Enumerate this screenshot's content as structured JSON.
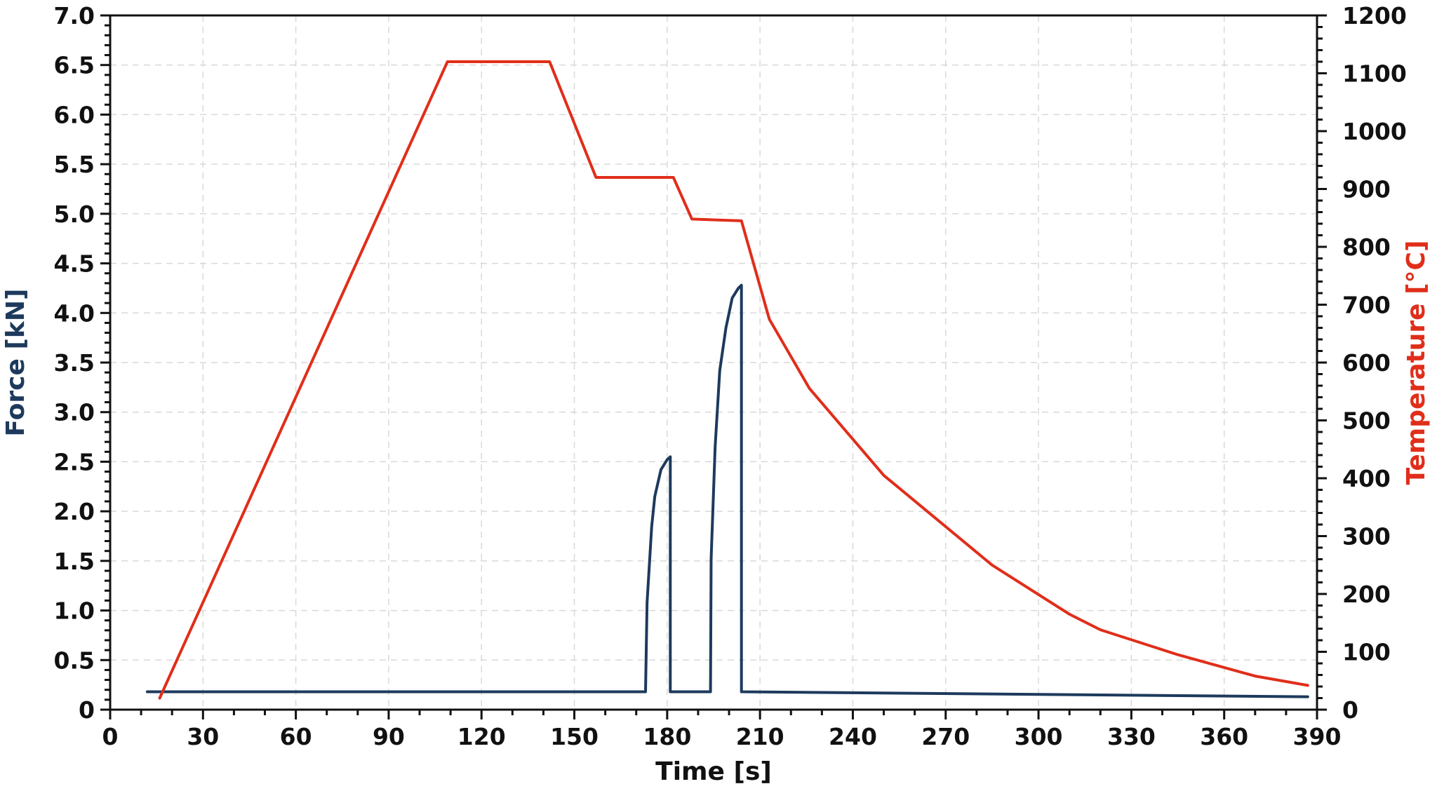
{
  "chart_data": {
    "type": "line",
    "xlabel": "Time [s]",
    "ylabel_left": "Force [kN]",
    "ylabel_right": "Temperature [°C]",
    "xlim": [
      0,
      390
    ],
    "ylim_left": [
      0,
      7.0
    ],
    "ylim_right": [
      0,
      1200
    ],
    "x_ticks": [
      "0",
      "30",
      "60",
      "90",
      "120",
      "150",
      "180",
      "210",
      "240",
      "270",
      "300",
      "330",
      "360",
      "390"
    ],
    "y_left_ticks": [
      "0",
      "0.5",
      "1.0",
      "1.5",
      "2.0",
      "2.5",
      "3.0",
      "3.5",
      "4.0",
      "4.5",
      "5.0",
      "5.5",
      "6.0",
      "6.5",
      "7.0"
    ],
    "y_right_ticks": [
      "0",
      "100",
      "200",
      "300",
      "400",
      "500",
      "600",
      "700",
      "800",
      "900",
      "1000",
      "1100",
      "1200"
    ],
    "grid": true,
    "colors": {
      "force": "#1d3a5c",
      "temperature": "#e02e1a",
      "grid": "#d9d9d9",
      "axis": "#111111"
    },
    "series": [
      {
        "name": "Force [kN]",
        "axis": "left",
        "x": [
          12,
          173,
          173.5,
          175,
          176,
          178,
          180,
          181,
          181,
          194,
          194.2,
          195.5,
          197,
          199,
          201,
          203,
          204,
          204,
          387
        ],
        "y": [
          0.18,
          0.18,
          1.08,
          1.85,
          2.15,
          2.42,
          2.52,
          2.55,
          0.18,
          0.18,
          1.52,
          2.65,
          3.42,
          3.85,
          4.15,
          4.25,
          4.28,
          0.18,
          0.13
        ]
      },
      {
        "name": "Temperature [°C]",
        "axis": "right",
        "x": [
          16,
          109,
          142,
          157,
          182,
          188,
          204,
          213,
          226,
          250,
          285,
          310,
          320,
          345,
          370,
          387
        ],
        "y": [
          20,
          1120,
          1120,
          920,
          920,
          848,
          845,
          675,
          555,
          405,
          250,
          165,
          138,
          95,
          58,
          42
        ]
      }
    ]
  }
}
